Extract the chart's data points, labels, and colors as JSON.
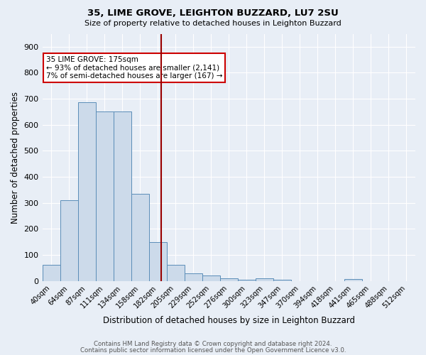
{
  "title1": "35, LIME GROVE, LEIGHTON BUZZARD, LU7 2SU",
  "title2": "Size of property relative to detached houses in Leighton Buzzard",
  "xlabel": "Distribution of detached houses by size in Leighton Buzzard",
  "ylabel": "Number of detached properties",
  "footer1": "Contains HM Land Registry data © Crown copyright and database right 2024.",
  "footer2": "Contains public sector information licensed under the Open Government Licence v3.0.",
  "bin_labels": [
    "40sqm",
    "64sqm",
    "87sqm",
    "111sqm",
    "134sqm",
    "158sqm",
    "182sqm",
    "205sqm",
    "229sqm",
    "252sqm",
    "276sqm",
    "300sqm",
    "323sqm",
    "347sqm",
    "370sqm",
    "394sqm",
    "418sqm",
    "441sqm",
    "465sqm",
    "488sqm",
    "512sqm"
  ],
  "bar_heights": [
    63,
    311,
    688,
    650,
    650,
    335,
    150,
    63,
    30,
    22,
    10,
    5,
    10,
    5,
    0,
    0,
    0,
    8,
    0,
    0,
    0
  ],
  "bar_color": "#ccdaea",
  "bar_edge_color": "#5b8db8",
  "bg_color": "#e8eef6",
  "grid_color": "#ffffff",
  "vline_color": "#990000",
  "annotation_text": "35 LIME GROVE: 175sqm\n← 93% of detached houses are smaller (2,141)\n7% of semi-detached houses are larger (167) →",
  "annotation_box_color": "#ffffff",
  "annotation_box_edge": "#cc0000",
  "ylim": [
    0,
    950
  ],
  "yticks": [
    0,
    100,
    200,
    300,
    400,
    500,
    600,
    700,
    800,
    900
  ],
  "num_bins": 21,
  "vline_x_index": 6
}
